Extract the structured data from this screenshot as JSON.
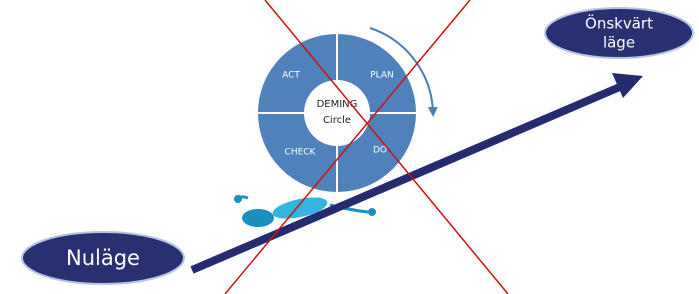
{
  "diagram": {
    "cycle": {
      "center": [
        "DEMING",
        "Circle"
      ],
      "quadrants": [
        "ACT",
        "PLAN",
        "CHECK",
        "DO"
      ]
    },
    "start": "Nuläge",
    "goal": [
      "Önskvärt",
      "läge"
    ]
  }
}
